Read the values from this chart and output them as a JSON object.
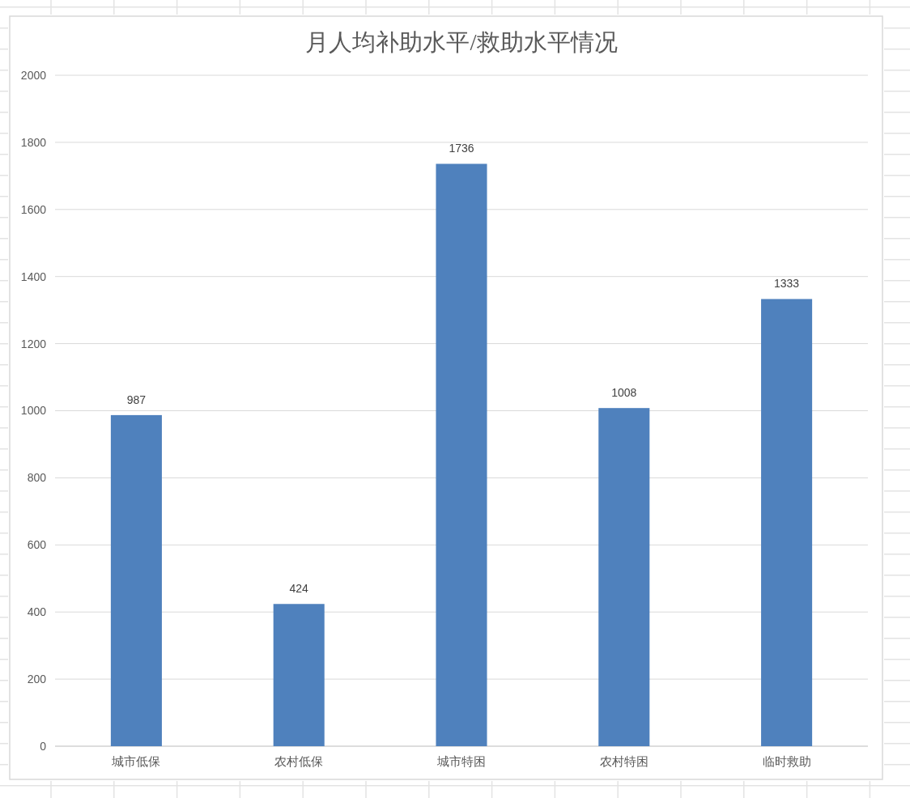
{
  "chart_data": {
    "type": "bar",
    "title": "月人均补助水平/救助水平情况",
    "categories": [
      "城市低保",
      "农村低保",
      "城市特困",
      "农村特困",
      "临时救助"
    ],
    "values": [
      987,
      424,
      1736,
      1008,
      1333
    ],
    "color": "#4f81bd",
    "ylim": [
      0,
      2000
    ],
    "yticks": [
      0,
      200,
      400,
      600,
      800,
      1000,
      1200,
      1400,
      1600,
      1800,
      2000
    ],
    "grid": "y",
    "data_labels": true
  }
}
